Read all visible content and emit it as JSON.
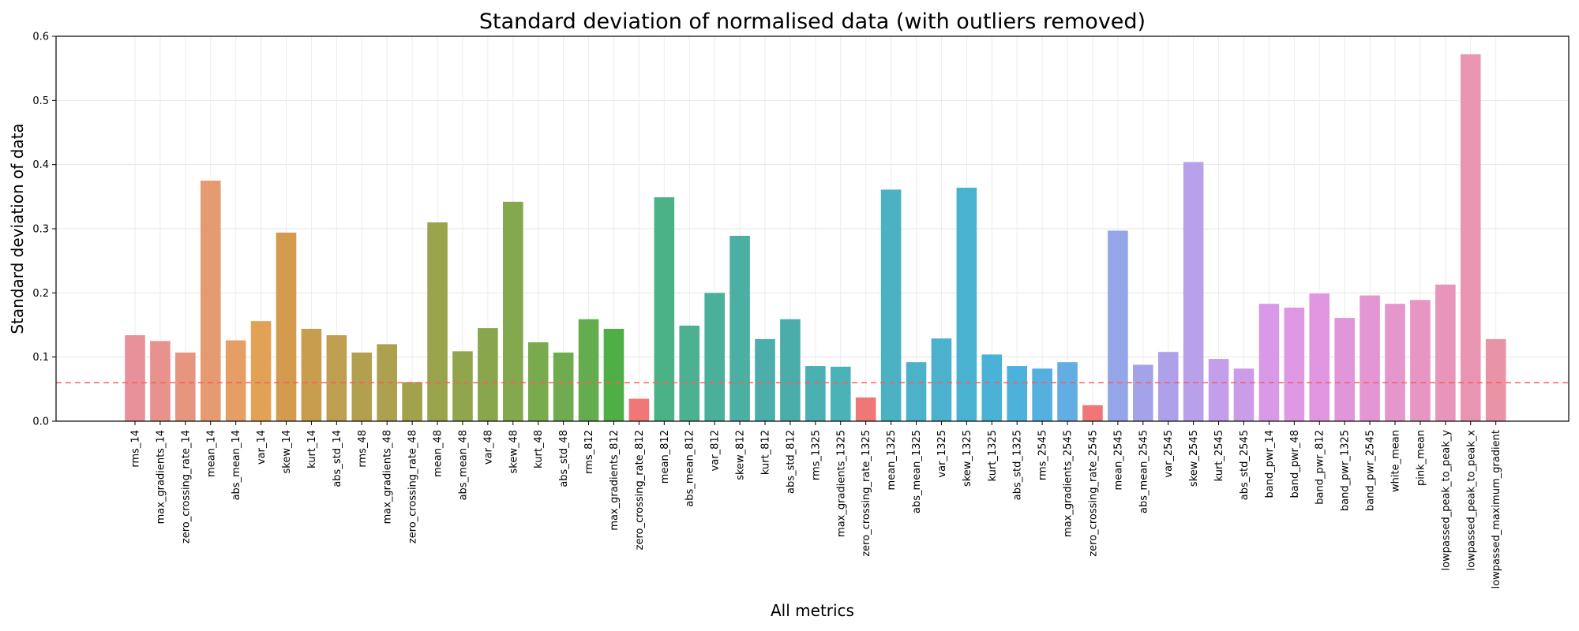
{
  "chart_data": {
    "type": "bar",
    "title": "Standard deviation of normalised data (with outliers removed)",
    "xlabel": "All metrics",
    "ylabel": "Standard deviation of data",
    "ylim": [
      0,
      0.6
    ],
    "yticks": [
      "0.0",
      "0.1",
      "0.2",
      "0.3",
      "0.4",
      "0.5",
      "0.6"
    ],
    "grid": true,
    "threshold_line": {
      "value": 0.06,
      "color": "#ff5a5a",
      "style": "dashed"
    },
    "highlight_color": "#ef7778",
    "categories": [
      "rms_14",
      "max_gradients_14",
      "zero_crossing_rate_14",
      "mean_14",
      "abs_mean_14",
      "var_14",
      "skew_14",
      "kurt_14",
      "abs_std_14",
      "rms_48",
      "max_gradients_48",
      "zero_crossing_rate_48",
      "mean_48",
      "abs_mean_48",
      "var_48",
      "skew_48",
      "kurt_48",
      "abs_std_48",
      "rms_812",
      "max_gradients_812",
      "zero_crossing_rate_812",
      "mean_812",
      "abs_mean_812",
      "var_812",
      "skew_812",
      "kurt_812",
      "abs_std_812",
      "rms_1325",
      "max_gradients_1325",
      "zero_crossing_rate_1325",
      "mean_1325",
      "abs_mean_1325",
      "var_1325",
      "skew_1325",
      "kurt_1325",
      "abs_std_1325",
      "rms_2545",
      "max_gradients_2545",
      "zero_crossing_rate_2545",
      "mean_2545",
      "abs_mean_2545",
      "var_2545",
      "skew_2545",
      "kurt_2545",
      "abs_std_2545",
      "band_pwr_14",
      "band_pwr_48",
      "band_pwr_812",
      "band_pwr_1325",
      "band_pwr_2545",
      "white_mean",
      "pink_mean",
      "lowpassed_peak_to_peak_y",
      "lowpassed_peak_to_peak_x",
      "lowpassed_maximum_gradient"
    ],
    "values": [
      0.134,
      0.125,
      0.107,
      0.375,
      0.126,
      0.156,
      0.294,
      0.144,
      0.134,
      0.107,
      0.12,
      0.061,
      0.31,
      0.109,
      0.145,
      0.342,
      0.123,
      0.107,
      0.159,
      0.144,
      0.035,
      0.349,
      0.149,
      0.2,
      0.289,
      0.128,
      0.159,
      0.086,
      0.085,
      0.037,
      0.361,
      0.092,
      0.129,
      0.364,
      0.104,
      0.086,
      0.082,
      0.092,
      0.025,
      0.297,
      0.088,
      0.108,
      0.404,
      0.097,
      0.082,
      0.183,
      0.177,
      0.199,
      0.161,
      0.196,
      0.183,
      0.189,
      0.213,
      0.572,
      0.128
    ],
    "below_threshold": [
      false,
      false,
      false,
      false,
      false,
      false,
      false,
      false,
      false,
      false,
      false,
      false,
      false,
      false,
      false,
      false,
      false,
      false,
      false,
      false,
      true,
      false,
      false,
      false,
      false,
      false,
      false,
      false,
      false,
      true,
      false,
      false,
      false,
      false,
      false,
      false,
      false,
      false,
      true,
      false,
      false,
      false,
      false,
      false,
      false,
      false,
      false,
      false,
      false,
      false,
      false,
      false,
      false,
      false,
      false
    ],
    "colors": [
      "#e8919b",
      "#e8928d",
      "#e6957f",
      "#e59a72",
      "#e49e66",
      "#e1a255",
      "#d49a4e",
      "#c99d4e",
      "#bd9f4f",
      "#b3a04f",
      "#aba14e",
      "#a3a24c",
      "#99a34c",
      "#91a54c",
      "#89a64c",
      "#83a84d",
      "#7aaa4e",
      "#70ac4f",
      "#63ad4f",
      "#50ae47",
      "#4ab16f",
      "#4ab285",
      "#4bb190",
      "#4bb09a",
      "#4bafa2",
      "#4baeaa",
      "#4bada9",
      "#4ab0b2",
      "#4bb3b7",
      "#4bb3bd",
      "#4ab2c3",
      "#4bb2c9",
      "#4bb1cc",
      "#4ab2d1",
      "#4ab2d6",
      "#4cb1db",
      "#55b0e0",
      "#62ade3",
      "#78a9e6",
      "#95a6e8",
      "#a4a3e9",
      "#aea1e9",
      "#b9a0ea",
      "#c39eea",
      "#cb9ce8",
      "#d89ae7",
      "#df98e4",
      "#e096e0",
      "#e196da",
      "#e396d3",
      "#e596cb",
      "#e795c3",
      "#e895bb",
      "#e995b1",
      "#e994a6"
    ]
  }
}
